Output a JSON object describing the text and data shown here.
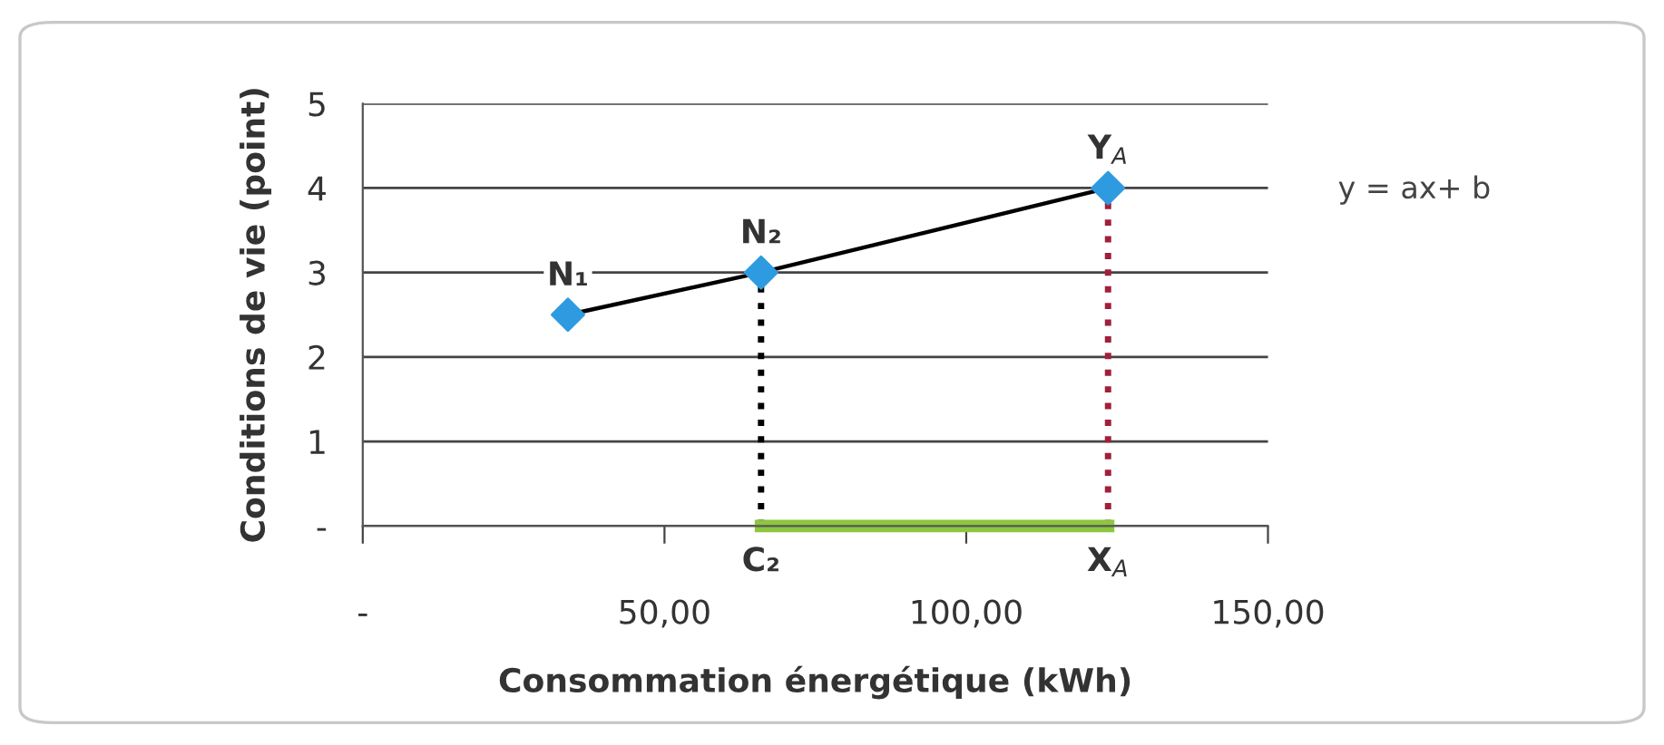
{
  "chart_data": {
    "type": "line",
    "xlabel": "Consommation énergétique (kWh)",
    "ylabel": "Conditions de vie (point)",
    "series": [
      {
        "color": "#000000",
        "x": [
          34,
          66,
          123.5
        ],
        "values": [
          2.5,
          3,
          4
        ],
        "marker": "diamond",
        "colors": [
          "#2e9be0",
          "#2e9be0",
          "#2e9be0"
        ],
        "line_style": "solid"
      },
      {
        "color": "#000000",
        "x": [
          66,
          66
        ],
        "values": [
          0,
          3
        ],
        "marker": "none",
        "line_style": "dotted"
      },
      {
        "color": "#a0203a",
        "x": [
          123.5,
          123.5
        ],
        "values": [
          0,
          4
        ],
        "marker": "none",
        "line_style": "dotted"
      },
      {
        "color": "#8dc63f",
        "x": [
          66,
          123.5
        ],
        "values": [
          0,
          0
        ],
        "marker": "none",
        "line_style": "solid"
      }
    ],
    "xlim": [
      0,
      150
    ],
    "xticks": [
      {
        "value": 0,
        "label": "-"
      },
      {
        "value": 50,
        "label": "50,00"
      },
      {
        "value": 100,
        "label": "100,00"
      },
      {
        "value": 150,
        "label": "150,00"
      }
    ],
    "ylim": [
      0,
      5
    ],
    "yticks": [
      {
        "value": 0,
        "label": "-"
      },
      1,
      2,
      3,
      4,
      5
    ],
    "grid": "y",
    "annotations": [
      {
        "text": "N₁",
        "x": 34,
        "y": 2.5
      },
      {
        "text": "N₂",
        "x": 66,
        "y": 3
      },
      {
        "text": "Y$_{A}$",
        "x": 123.5,
        "y": 4
      },
      {
        "text": "C₂",
        "x": 66,
        "y": 0
      },
      {
        "text": "X$_{A}$",
        "x": 123.5,
        "y": 0
      },
      "y = ax+ b"
    ]
  }
}
